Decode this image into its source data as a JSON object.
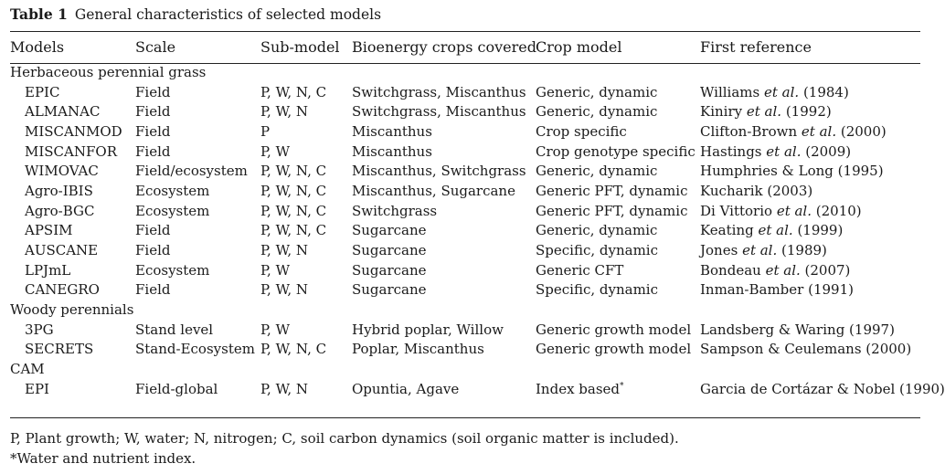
{
  "caption": {
    "label": "Table 1",
    "title": "General characteristics of selected models"
  },
  "headers": [
    "Models",
    "Scale",
    "Sub-model",
    "Bioenergy crops covered",
    "Crop model",
    "First reference"
  ],
  "groups": [
    {
      "name": "Herbaceous perennial grass",
      "rows": [
        {
          "model": "EPIC",
          "scale": "Field",
          "sub": "P, W, N, C",
          "crops": "Switchgrass, Miscanthus",
          "crop_model": "Generic, dynamic",
          "ref": [
            "Williams ",
            "et al.",
            " (1984)"
          ]
        },
        {
          "model": "ALMANAC",
          "scale": "Field",
          "sub": "P, W, N",
          "crops": "Switchgrass, Miscanthus",
          "crop_model": "Generic, dynamic",
          "ref": [
            "Kiniry ",
            "et al.",
            " (1992)"
          ]
        },
        {
          "model": "MISCANMOD",
          "scale": "Field",
          "sub": "P",
          "crops": "Miscanthus",
          "crop_model": "Crop specific",
          "ref": [
            "Clifton-Brown ",
            "et al.",
            " (2000)"
          ]
        },
        {
          "model": "MISCANFOR",
          "scale": "Field",
          "sub": "P, W",
          "crops": "Miscanthus",
          "crop_model": "Crop genotype specific",
          "ref": [
            "Hastings ",
            "et al.",
            " (2009)"
          ]
        },
        {
          "model": "WIMOVAC",
          "scale": "Field/ecosystem",
          "sub": "P, W, N, C",
          "crops": "Miscanthus, Switchgrass",
          "crop_model": "Generic, dynamic",
          "ref": [
            "Humphries & Long (1995)",
            "",
            ""
          ]
        },
        {
          "model": "Agro-IBIS",
          "scale": "Ecosystem",
          "sub": "P, W, N, C",
          "crops": "Miscanthus, Sugarcane",
          "crop_model": "Generic PFT, dynamic",
          "ref": [
            "Kucharik (2003)",
            "",
            ""
          ]
        },
        {
          "model": "Agro-BGC",
          "scale": "Ecosystem",
          "sub": "P, W, N, C",
          "crops": "Switchgrass",
          "crop_model": "Generic PFT, dynamic",
          "ref": [
            "Di Vittorio ",
            "et al.",
            " (2010)"
          ]
        },
        {
          "model": "APSIM",
          "scale": "Field",
          "sub": "P, W, N, C",
          "crops": "Sugarcane",
          "crop_model": "Generic, dynamic",
          "ref": [
            "Keating ",
            "et al.",
            " (1999)"
          ]
        },
        {
          "model": "AUSCANE",
          "scale": "Field",
          "sub": "P, W, N",
          "crops": "Sugarcane",
          "crop_model": "Specific, dynamic",
          "ref": [
            "Jones ",
            "et al.",
            " (1989)"
          ]
        },
        {
          "model": "LPJmL",
          "scale": "Ecosystem",
          "sub": "P, W",
          "crops": "Sugarcane",
          "crop_model": "Generic CFT",
          "ref": [
            "Bondeau ",
            "et al.",
            " (2007)"
          ]
        },
        {
          "model": "CANEGRO",
          "scale": "Field",
          "sub": "P, W, N",
          "crops": "Sugarcane",
          "crop_model": "Specific, dynamic",
          "ref": [
            "Inman-Bamber (1991)",
            "",
            ""
          ]
        }
      ]
    },
    {
      "name": "Woody perennials",
      "rows": [
        {
          "model": "3PG",
          "scale": "Stand level",
          "sub": "P, W",
          "crops": "Hybrid poplar, Willow",
          "crop_model": "Generic growth model",
          "ref": [
            "Landsberg & Waring (1997)",
            "",
            ""
          ]
        },
        {
          "model": "SECRETS",
          "scale": "Stand-Ecosystem",
          "sub": "P, W, N, C",
          "crops": "Poplar, Miscanthus",
          "crop_model": "Generic growth model",
          "ref": [
            "Sampson & Ceulemans (2000)",
            "",
            ""
          ]
        }
      ]
    },
    {
      "name": "CAM",
      "rows": [
        {
          "model": "EPI",
          "scale": "Field-global",
          "sub": "P, W, N",
          "crops": "Opuntia, Agave",
          "crop_model": "Index based",
          "crop_model_sup": "*",
          "ref": [
            "Garcia de Cortázar & Nobel (1990)",
            "",
            ""
          ]
        }
      ]
    }
  ],
  "footnotes": [
    "P, Plant growth; W, water; N, nitrogen; C, soil carbon dynamics (soil organic matter is included).",
    "*Water and nutrient index."
  ]
}
